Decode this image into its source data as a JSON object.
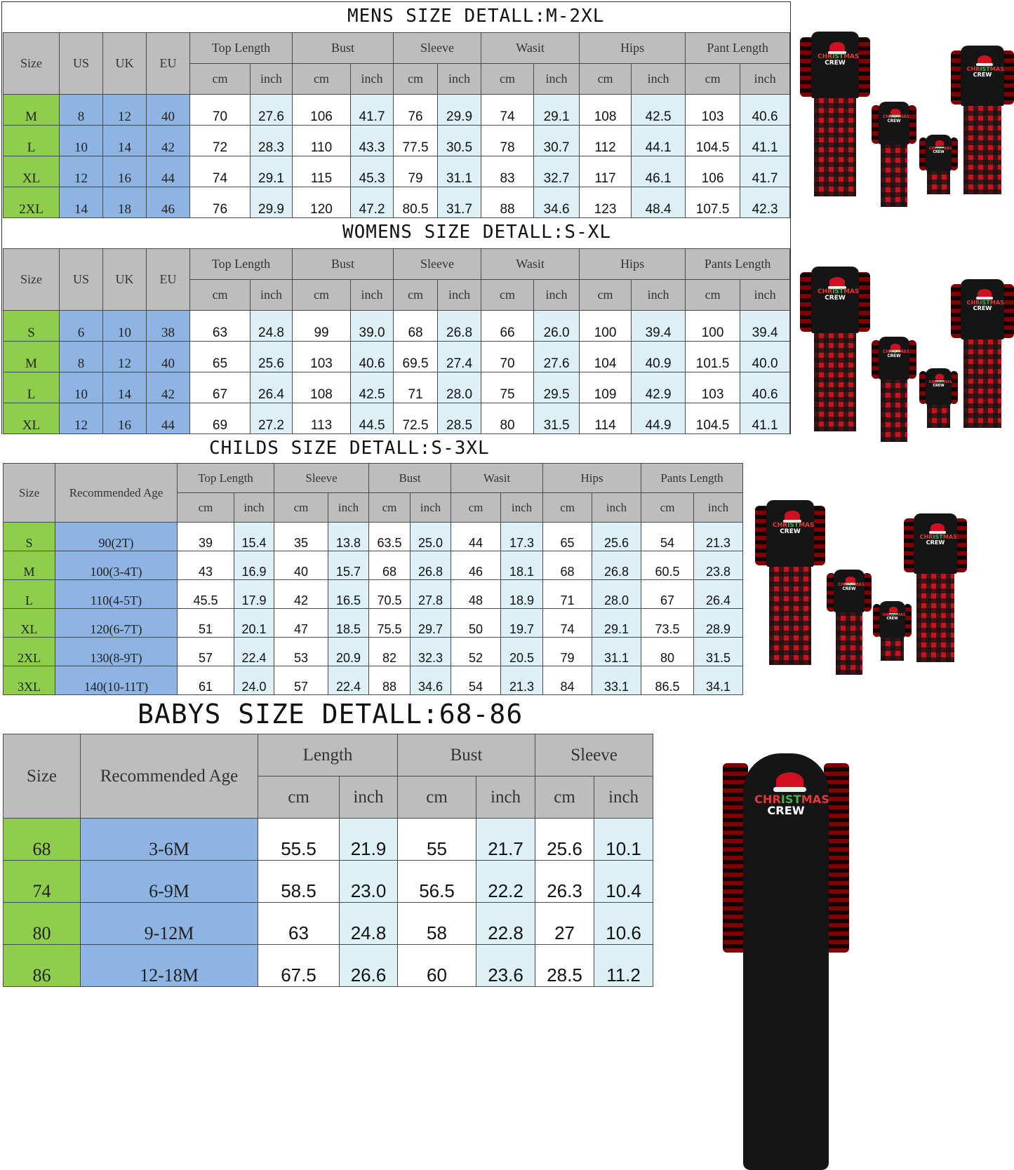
{
  "sections": [
    {
      "title": "MENS SIZE DETALL:M-2XL",
      "size_label": "Size",
      "ref_labels": [
        "US",
        "UK",
        "EU"
      ],
      "groups": [
        "Top Length",
        "Bust",
        "Sleeve",
        "Wasit",
        "Hips",
        "Pant Length"
      ],
      "unit_labels": [
        "cm",
        "inch"
      ],
      "rows": [
        {
          "size": "M",
          "refs": [
            "8",
            "12",
            "40"
          ],
          "values": [
            "70",
            "27.6",
            "106",
            "41.7",
            "76",
            "29.9",
            "74",
            "29.1",
            "108",
            "42.5",
            "103",
            "40.6"
          ]
        },
        {
          "size": "L",
          "refs": [
            "10",
            "14",
            "42"
          ],
          "values": [
            "72",
            "28.3",
            "110",
            "43.3",
            "77.5",
            "30.5",
            "78",
            "30.7",
            "112",
            "44.1",
            "104.5",
            "41.1"
          ]
        },
        {
          "size": "XL",
          "refs": [
            "12",
            "16",
            "44"
          ],
          "values": [
            "74",
            "29.1",
            "115",
            "45.3",
            "79",
            "31.1",
            "83",
            "32.7",
            "117",
            "46.1",
            "106",
            "41.7"
          ]
        },
        {
          "size": "2XL",
          "refs": [
            "14",
            "18",
            "46"
          ],
          "values": [
            "76",
            "29.9",
            "120",
            "47.2",
            "80.5",
            "31.7",
            "88",
            "34.6",
            "123",
            "48.4",
            "107.5",
            "42.3"
          ]
        }
      ]
    },
    {
      "title": "WOMENS SIZE DETALL:S-XL",
      "size_label": "Size",
      "ref_labels": [
        "US",
        "UK",
        "EU"
      ],
      "groups": [
        "Top Length",
        "Bust",
        "Sleeve",
        "Wasit",
        "Hips",
        "Pants Length"
      ],
      "unit_labels": [
        "cm",
        "inch"
      ],
      "rows": [
        {
          "size": "S",
          "refs": [
            "6",
            "10",
            "38"
          ],
          "values": [
            "63",
            "24.8",
            "99",
            "39.0",
            "68",
            "26.8",
            "66",
            "26.0",
            "100",
            "39.4",
            "100",
            "39.4"
          ]
        },
        {
          "size": "M",
          "refs": [
            "8",
            "12",
            "40"
          ],
          "values": [
            "65",
            "25.6",
            "103",
            "40.6",
            "69.5",
            "27.4",
            "70",
            "27.6",
            "104",
            "40.9",
            "101.5",
            "40.0"
          ]
        },
        {
          "size": "L",
          "refs": [
            "10",
            "14",
            "42"
          ],
          "values": [
            "67",
            "26.4",
            "108",
            "42.5",
            "71",
            "28.0",
            "75",
            "29.5",
            "109",
            "42.9",
            "103",
            "40.6"
          ]
        },
        {
          "size": "XL",
          "refs": [
            "12",
            "16",
            "44"
          ],
          "values": [
            "69",
            "27.2",
            "113",
            "44.5",
            "72.5",
            "28.5",
            "80",
            "31.5",
            "114",
            "44.9",
            "104.5",
            "41.1"
          ]
        }
      ]
    },
    {
      "title": "CHILDS SIZE DETALL:S-3XL",
      "size_label": "Size",
      "ref_labels": [
        "Recommended Age"
      ],
      "groups": [
        "Top Length",
        "Sleeve",
        "Bust",
        "Wasit",
        "Hips",
        "Pants Length"
      ],
      "unit_labels": [
        "cm",
        "inch"
      ],
      "rows": [
        {
          "size": "S",
          "refs": [
            "90(2T)"
          ],
          "values": [
            "39",
            "15.4",
            "35",
            "13.8",
            "63.5",
            "25.0",
            "44",
            "17.3",
            "65",
            "25.6",
            "54",
            "21.3"
          ]
        },
        {
          "size": "M",
          "refs": [
            "100(3-4T)"
          ],
          "values": [
            "43",
            "16.9",
            "40",
            "15.7",
            "68",
            "26.8",
            "46",
            "18.1",
            "68",
            "26.8",
            "60.5",
            "23.8"
          ]
        },
        {
          "size": "L",
          "refs": [
            "110(4-5T)"
          ],
          "values": [
            "45.5",
            "17.9",
            "42",
            "16.5",
            "70.5",
            "27.8",
            "48",
            "18.9",
            "71",
            "28.0",
            "67",
            "26.4"
          ]
        },
        {
          "size": "XL",
          "refs": [
            "120(6-7T)"
          ],
          "values": [
            "51",
            "20.1",
            "47",
            "18.5",
            "75.5",
            "29.7",
            "50",
            "19.7",
            "74",
            "29.1",
            "73.5",
            "28.9"
          ]
        },
        {
          "size": "2XL",
          "refs": [
            "130(8-9T)"
          ],
          "values": [
            "57",
            "22.4",
            "53",
            "20.9",
            "82",
            "32.3",
            "52",
            "20.5",
            "79",
            "31.1",
            "80",
            "31.5"
          ]
        },
        {
          "size": "3XL",
          "refs": [
            "140(10-11T)"
          ],
          "values": [
            "61",
            "24.0",
            "57",
            "22.4",
            "88",
            "34.6",
            "54",
            "21.3",
            "84",
            "33.1",
            "86.5",
            "34.1"
          ]
        }
      ]
    },
    {
      "title": "BABYS SIZE DETALL:68-86",
      "size_label": "Size",
      "ref_labels": [
        "Recommended Age"
      ],
      "groups": [
        "Length",
        "Bust",
        "Sleeve"
      ],
      "unit_labels": [
        "cm",
        "inch"
      ],
      "rows": [
        {
          "size": "68",
          "refs": [
            "3-6M"
          ],
          "values": [
            "55.5",
            "21.9",
            "55",
            "21.7",
            "25.6",
            "10.1"
          ]
        },
        {
          "size": "74",
          "refs": [
            "6-9M"
          ],
          "values": [
            "58.5",
            "23.0",
            "56.5",
            "22.2",
            "26.3",
            "10.4"
          ]
        },
        {
          "size": "80",
          "refs": [
            "9-12M"
          ],
          "values": [
            "63",
            "24.8",
            "58",
            "22.8",
            "27",
            "10.6"
          ]
        },
        {
          "size": "86",
          "refs": [
            "12-18M"
          ],
          "values": [
            "67.5",
            "26.6",
            "60",
            "23.6",
            "28.5",
            "11.2"
          ]
        }
      ]
    }
  ],
  "product_images": {
    "logo_text": "CHRISTMAS CREW",
    "colors": {
      "plaid_red": "#c8141e",
      "plaid_black": "#151515",
      "top": "#151515"
    }
  },
  "colors": {
    "header_gray": "#bdbdbd",
    "size_green": "#8fce4a",
    "ref_blue": "#8db4e2",
    "inch_light_blue": "#dcf0f6",
    "cm_white": "#ffffff"
  }
}
